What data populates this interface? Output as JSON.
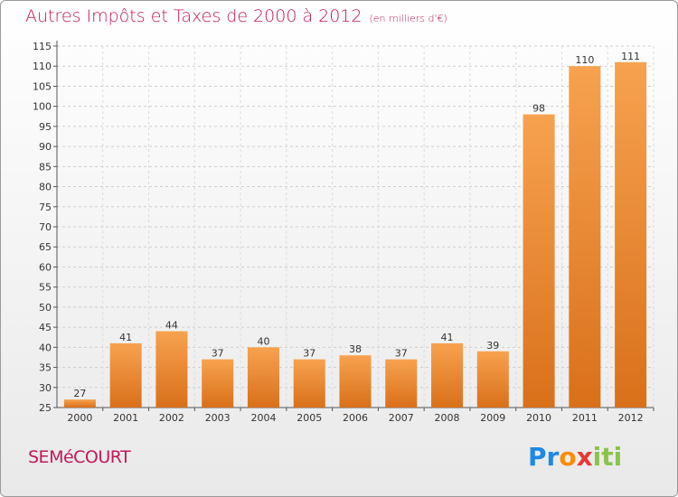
{
  "header": {
    "title": "Autres Impôts et Taxes de 2000 à 2012",
    "unit": "(en milliers d'€)"
  },
  "commune": "SEMéCOURT",
  "logo": {
    "text": "Proxiti",
    "letters": [
      "P",
      "r",
      "o",
      "x",
      "i",
      "t",
      "i"
    ],
    "colors": [
      "#1e88e5",
      "#1e88e5",
      "#fb8c00",
      "#e53935",
      "#8bc34a",
      "#8bc34a",
      "#8bc34a"
    ]
  },
  "chart_data": {
    "type": "bar",
    "categories": [
      "2000",
      "2001",
      "2002",
      "2003",
      "2004",
      "2005",
      "2006",
      "2007",
      "2008",
      "2009",
      "2010",
      "2011",
      "2012"
    ],
    "values": [
      27,
      41,
      44,
      37,
      40,
      37,
      38,
      37,
      41,
      39,
      98,
      110,
      111
    ],
    "ylim": [
      25,
      115
    ],
    "yticks": [
      25,
      30,
      35,
      40,
      45,
      50,
      55,
      60,
      65,
      70,
      75,
      80,
      85,
      90,
      95,
      100,
      105,
      110,
      115
    ],
    "grid": true,
    "bar_color": "#f0892a",
    "title": "Autres Impôts et Taxes de 2000 à 2012",
    "ylabel": "(en milliers d'€)",
    "xlabel": ""
  }
}
